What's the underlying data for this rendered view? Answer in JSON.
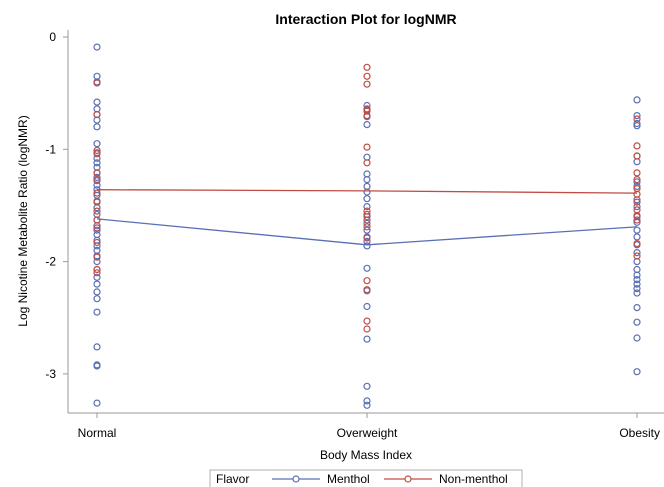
{
  "chart_data": {
    "type": "scatter",
    "title": "Interaction Plot for logNMR",
    "xlabel": "Body Mass Index",
    "ylabel": "Log Nicotine Metabolite Ratio (logNMR)",
    "categories": [
      "Normal",
      "Overweight",
      "Obesity"
    ],
    "ylim": [
      -3.35,
      0.02
    ],
    "yticks": [
      0,
      -1,
      -2,
      -3
    ],
    "ytick_labels": [
      "0",
      "-1",
      "-2",
      "-3"
    ],
    "grid": false,
    "legend": {
      "title": "Flavor",
      "placement": "bottom",
      "entries": [
        "Menthol",
        "Non-menthol"
      ]
    },
    "colors": {
      "menthol": "#5b6fb5",
      "non_menthol": "#c04d45",
      "axis": "#9a9a9a"
    },
    "series": [
      {
        "name": "Menthol",
        "mean_line": [
          -1.62,
          -1.85,
          -1.69
        ],
        "points": {
          "Normal": [
            -0.09,
            -0.35,
            -0.4,
            -0.58,
            -0.64,
            -0.69,
            -0.74,
            -0.8,
            -0.95,
            -1.03,
            -1.08,
            -1.12,
            -1.16,
            -1.21,
            -1.25,
            -1.28,
            -1.32,
            -1.36,
            -1.41,
            -1.46,
            -1.52,
            -1.58,
            -1.63,
            -1.68,
            -1.72,
            -1.76,
            -1.81,
            -1.86,
            -1.9,
            -1.95,
            -2.0,
            -2.07,
            -2.14,
            -2.2,
            -2.27,
            -2.33,
            -2.45,
            -2.76,
            -2.92,
            -2.93,
            -3.26
          ],
          "Overweight": [
            -0.61,
            -0.65,
            -0.71,
            -0.78,
            -1.07,
            -1.22,
            -1.27,
            -1.33,
            -1.38,
            -1.44,
            -1.51,
            -1.6,
            -1.66,
            -1.72,
            -1.78,
            -1.82,
            -1.86,
            -2.06,
            -2.26,
            -2.4,
            -2.69,
            -3.11,
            -3.24,
            -3.28
          ],
          "Obesity": [
            -0.56,
            -0.7,
            -0.77,
            -0.79,
            -1.06,
            -1.11,
            -1.29,
            -1.33,
            -1.45,
            -1.51,
            -1.59,
            -1.65,
            -1.72,
            -1.78,
            -1.85,
            -1.92,
            -2.0,
            -2.07,
            -2.12,
            -2.16,
            -2.2,
            -2.24,
            -2.28,
            -2.41,
            -2.54,
            -2.68,
            -2.98
          ]
        }
      },
      {
        "name": "Non-menthol",
        "mean_line": [
          -1.36,
          -1.37,
          -1.39
        ],
        "points": {
          "Normal": [
            -0.41,
            -0.69,
            -1.01,
            -1.04,
            -1.21,
            -1.27,
            -1.39,
            -1.47,
            -1.55,
            -1.63,
            -1.7,
            -1.83,
            -1.96,
            -2.07,
            -2.1
          ],
          "Overweight": [
            -0.27,
            -0.35,
            -0.42,
            -0.64,
            -0.66,
            -0.7,
            -0.98,
            -1.12,
            -1.55,
            -1.58,
            -1.63,
            -1.69,
            -1.79,
            -2.17,
            -2.25,
            -2.53,
            -2.6
          ],
          "Obesity": [
            -0.73,
            -0.97,
            -1.06,
            -1.21,
            -1.27,
            -1.35,
            -1.4,
            -1.47,
            -1.54,
            -1.6,
            -1.63,
            -1.84,
            -1.95
          ]
        }
      }
    ]
  }
}
